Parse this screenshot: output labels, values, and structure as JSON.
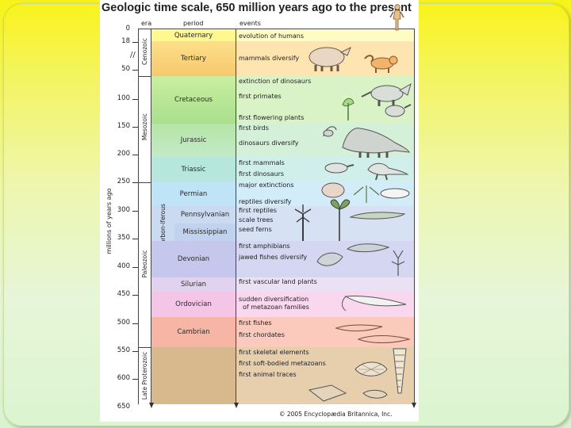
{
  "figure": {
    "title": "Geologic time scale, 650 million years ago to the present",
    "headers": {
      "era": "era",
      "period": "period",
      "events": "events"
    },
    "axis_title": "millions of years ago",
    "ticks": [
      "0",
      "18",
      "50",
      "100",
      "150",
      "200",
      "250",
      "300",
      "350",
      "400",
      "450",
      "500",
      "550",
      "600",
      "650"
    ],
    "eras": {
      "cenozoic": "Cenozoic",
      "mesozoic": "Mesozoic",
      "paleozoic": "Paleozoic",
      "late_proterozoic": "Late Proterozoic"
    },
    "carboniferous_label": "Carbon-iferous",
    "periods": {
      "quaternary": "Quaternary",
      "tertiary": "Tertiary",
      "cretaceous": "Cretaceous",
      "jurassic": "Jurassic",
      "triassic": "Triassic",
      "permian": "Permian",
      "pennsylvanian": "Pennsylvanian",
      "mississippian": "Mississippian",
      "devonian": "Devonian",
      "silurian": "Silurian",
      "ordovician": "Ordovician",
      "cambrian": "Cambrian"
    },
    "events": [
      "evolution of humans",
      "mammals diversify",
      "extinction of dinosaurs",
      "first primates",
      "first flowering plants",
      "first birds",
      "dinosaurs diversify",
      "first mammals",
      "first dinosaurs",
      "major extinctions",
      "reptiles diversify",
      "first reptiles",
      "scale trees",
      "seed ferns",
      "first amphibians",
      "jawed fishes diversify",
      "first vascular land plants",
      "sudden diversification",
      "of metazoan families",
      "first fishes",
      "first chordates",
      "first skeletal elements",
      "first soft-bodied metazoans",
      "first animal traces"
    ],
    "copyright": "© 2005 Encyclopædia Britannica, Inc.",
    "colors": {
      "quaternary": "#fff78f",
      "tertiary": "#fbd27a",
      "cretaceous": "#bcea9e",
      "jurassic": "#c4ecc5",
      "triassic": "#b7e7e0",
      "permian": "#bfe6f4",
      "carboniferous": "#c8d9f0",
      "devonian": "#c7c8ec",
      "silurian": "#e2d4ee",
      "ordovician": "#f6c7e8",
      "cambrian": "#f8b7a6",
      "proterozoic": "#d8b98f"
    }
  }
}
